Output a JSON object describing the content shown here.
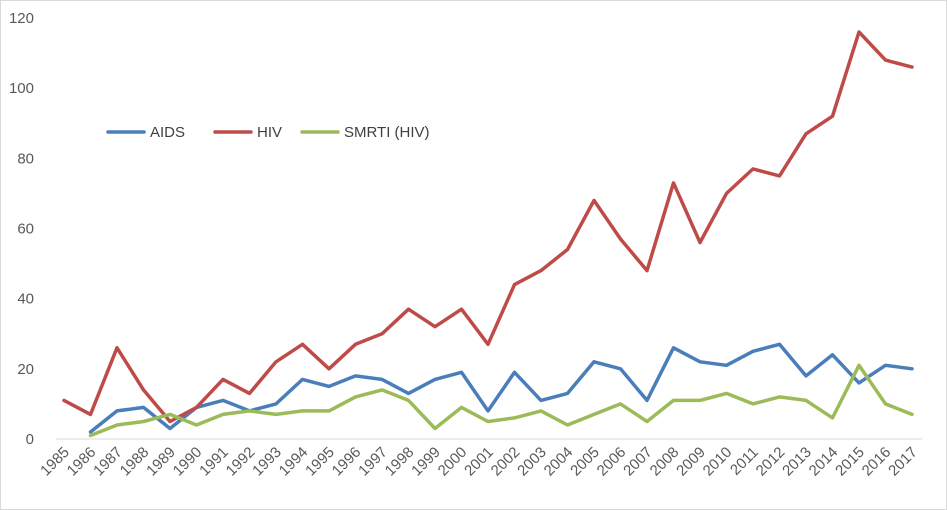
{
  "chart_data": {
    "type": "line",
    "title": "",
    "xlabel": "",
    "ylabel": "",
    "ylim": [
      0,
      120
    ],
    "yticks": [
      0,
      20,
      40,
      60,
      80,
      100,
      120
    ],
    "grid": false,
    "legend_position": "top-left (inside plot)",
    "x": [
      "1985",
      "1986",
      "1987",
      "1988",
      "1989",
      "1990",
      "1991",
      "1992",
      "1993",
      "1994",
      "1995",
      "1996",
      "1997",
      "1998",
      "1999",
      "2000",
      "2001",
      "2002",
      "2003",
      "2004",
      "2005",
      "2006",
      "2007",
      "2008",
      "2009",
      "2010",
      "2011",
      "2012",
      "2013",
      "2014",
      "2015",
      "2016",
      "2017"
    ],
    "series": [
      {
        "name": "AIDS",
        "color": "#4a7ebb",
        "values": [
          null,
          2,
          8,
          9,
          3,
          9,
          11,
          8,
          10,
          17,
          15,
          18,
          17,
          13,
          17,
          19,
          8,
          19,
          11,
          13,
          22,
          20,
          11,
          26,
          22,
          21,
          25,
          27,
          18,
          24,
          16,
          21,
          20
        ]
      },
      {
        "name": "HIV",
        "color": "#be4b48",
        "values": [
          11,
          7,
          26,
          14,
          5,
          9,
          17,
          13,
          22,
          27,
          20,
          27,
          30,
          37,
          32,
          37,
          27,
          44,
          48,
          54,
          68,
          57,
          48,
          73,
          56,
          70,
          77,
          75,
          87,
          92,
          116,
          108,
          106
        ]
      },
      {
        "name": "SMRTI (HIV)",
        "color": "#9bbb59",
        "values": [
          null,
          1,
          4,
          5,
          7,
          4,
          7,
          8,
          7,
          8,
          8,
          12,
          14,
          11,
          3,
          9,
          5,
          6,
          8,
          4,
          7,
          10,
          5,
          11,
          11,
          13,
          10,
          12,
          11,
          6,
          21,
          10,
          7
        ]
      }
    ]
  }
}
